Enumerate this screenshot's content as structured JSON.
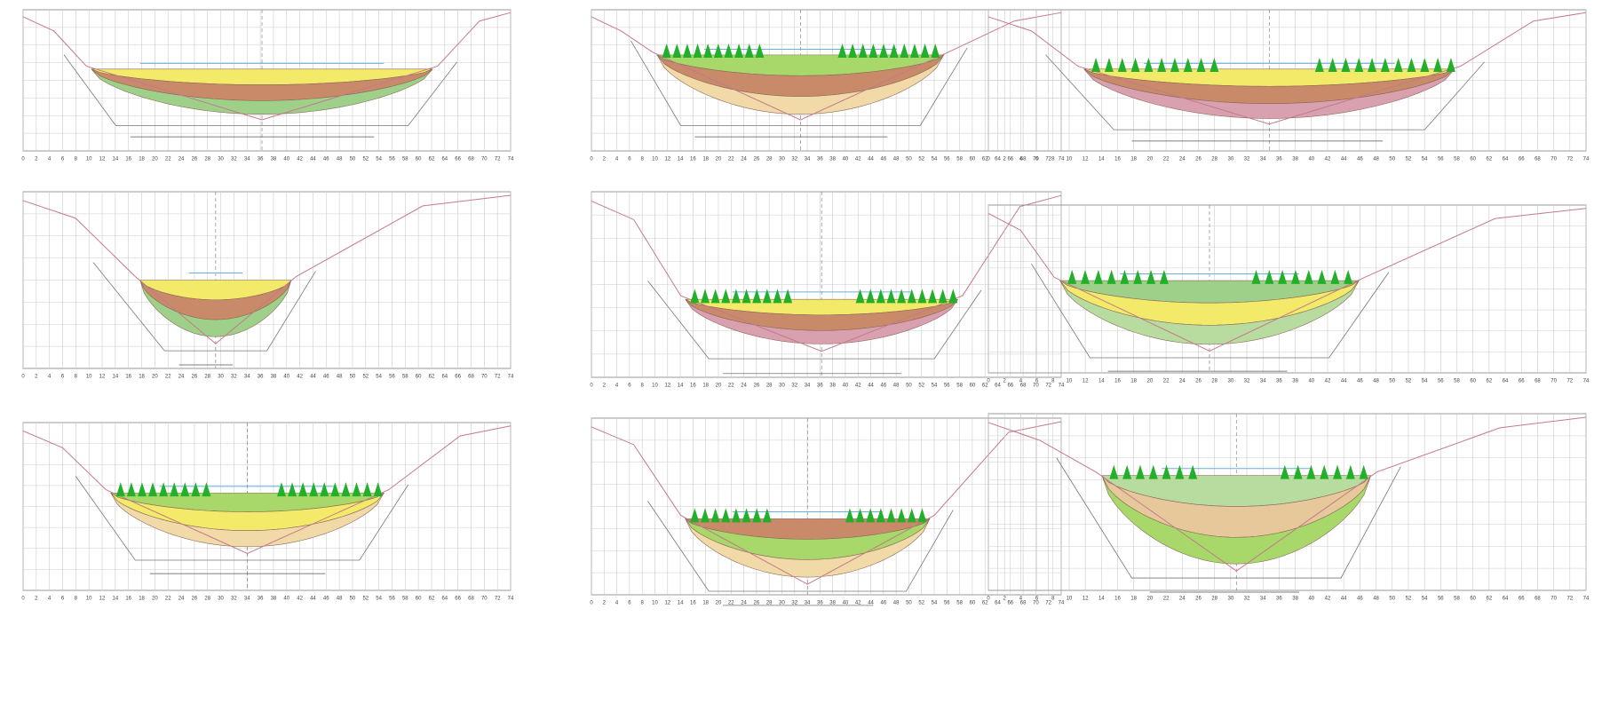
{
  "x_axis_ticks": [
    0,
    2,
    4,
    6,
    8,
    10,
    12,
    14,
    16,
    18,
    20,
    22,
    24,
    26,
    28,
    30,
    32,
    34,
    36,
    38,
    40,
    42,
    44,
    46,
    48,
    50,
    52,
    54,
    56,
    58,
    60,
    62,
    64,
    66,
    68,
    70,
    72,
    74
  ]
}
